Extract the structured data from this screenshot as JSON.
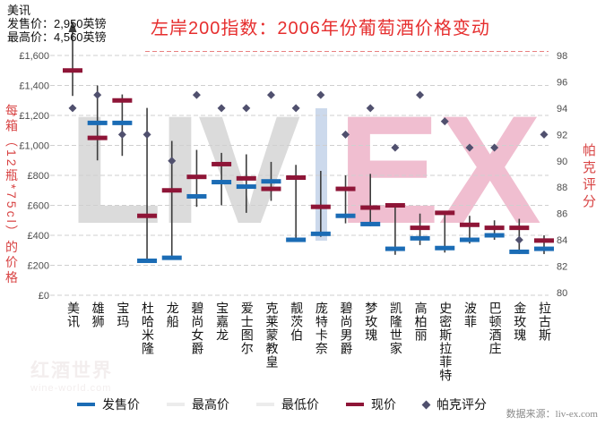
{
  "title": "左岸200指数：2006年份葡萄酒价格变动",
  "annotation": {
    "wine_name": "美讯",
    "offer_line": "发售价：2,950英镑",
    "high_line": "最高价：4,560英镑"
  },
  "watermark": {
    "left": "LIV",
    "right": "EX"
  },
  "corner_watermark": {
    "line1": "红酒世界",
    "line2": "wine-world.com"
  },
  "source": "数据来源：liv-ex.com",
  "colors": {
    "title_red": "#e62e2e",
    "axis_title_red": "#d84343",
    "offer_blue": "#1b6cb5",
    "current_maroon": "#8e1537",
    "parker_diamond": "#50506e",
    "range_line": "#3d3d3d",
    "gridline": "#cfcfcf",
    "tick_text": "#4d4d4d",
    "title_underline": "#e98080",
    "watermark_gray": "#dbdbdb",
    "watermark_pink": "#f0bed0"
  },
  "legend": {
    "items": [
      {
        "label": "发售价",
        "marker": "dash",
        "color": "#1b6cb5"
      },
      {
        "label": "最高价",
        "marker": "dash",
        "color": "#ececec"
      },
      {
        "label": "最低价",
        "marker": "dash",
        "color": "#ececec"
      },
      {
        "label": "现价",
        "marker": "dash",
        "color": "#8e1537"
      },
      {
        "label": "帕克评分",
        "marker": "diamond",
        "color": "#50506e"
      }
    ]
  },
  "chart_data": {
    "type": "bar",
    "subtype": "high-low range bars with offer/current price ticks and Parker-score diamonds",
    "title": "左岸200指数：2006年份葡萄酒价格变动",
    "categories": [
      "美讯",
      "雄狮",
      "宝玛",
      "杜哈米隆",
      "龙船",
      "碧尚女爵",
      "宝嘉龙",
      "爱士图尔",
      "克莱蒙教皇",
      "靓茨伯",
      "庞特卡奈",
      "碧尚男爵",
      "梦玫瑰",
      "凯隆世家",
      "高柏丽",
      "史密斯拉菲特",
      "波菲",
      "巴顿酒庄",
      "金玫瑰",
      "拉古斯"
    ],
    "series": [
      {
        "name": "最高价",
        "role": "range_high",
        "axis": "left",
        "values": [
          4560,
          1400,
          1340,
          1250,
          1030,
          970,
          950,
          940,
          890,
          870,
          830,
          800,
          810,
          600,
          545,
          550,
          530,
          500,
          510,
          400
        ]
      },
      {
        "name": "最低价",
        "role": "range_low",
        "axis": "left",
        "values": [
          1330,
          900,
          930,
          225,
          250,
          590,
          600,
          550,
          630,
          365,
          390,
          480,
          460,
          270,
          335,
          285,
          345,
          370,
          275,
          275
        ]
      },
      {
        "name": "发售价",
        "role": "tick",
        "axis": "left",
        "color": "#1b6cb5",
        "values": [
          2950,
          1150,
          1150,
          230,
          250,
          660,
          755,
          725,
          760,
          370,
          410,
          530,
          475,
          310,
          380,
          315,
          370,
          400,
          290,
          310
        ]
      },
      {
        "name": "现价",
        "role": "tick",
        "axis": "left",
        "color": "#8e1537",
        "values": [
          1500,
          1050,
          1300,
          530,
          700,
          790,
          875,
          780,
          710,
          785,
          590,
          710,
          585,
          600,
          450,
          550,
          470,
          450,
          450,
          365
        ]
      },
      {
        "name": "帕克评分",
        "role": "scatter_diamond",
        "axis": "right",
        "color": "#50506e",
        "values": [
          94,
          95,
          92,
          92,
          90,
          95,
          94,
          94,
          95,
          94,
          95,
          92,
          94,
          91,
          95,
          93,
          91,
          91,
          84,
          92
        ]
      }
    ],
    "y_left": {
      "label": "每箱（12瓶*75cl）的价格",
      "min": 0,
      "max": 1600,
      "step": 200,
      "tick_prefix": "£"
    },
    "y_right": {
      "label": "帕克评分",
      "min": 80,
      "max": 98,
      "step": 2
    },
    "grid": "dashed horizontal, left-axis intervals",
    "legend_position": "bottom",
    "annotations": [
      {
        "target": "美讯",
        "text": "发售价：2,950英镑 / 最高价：4,560英镑 — 超出纵轴范围，条形以向上箭头截断"
      }
    ]
  }
}
